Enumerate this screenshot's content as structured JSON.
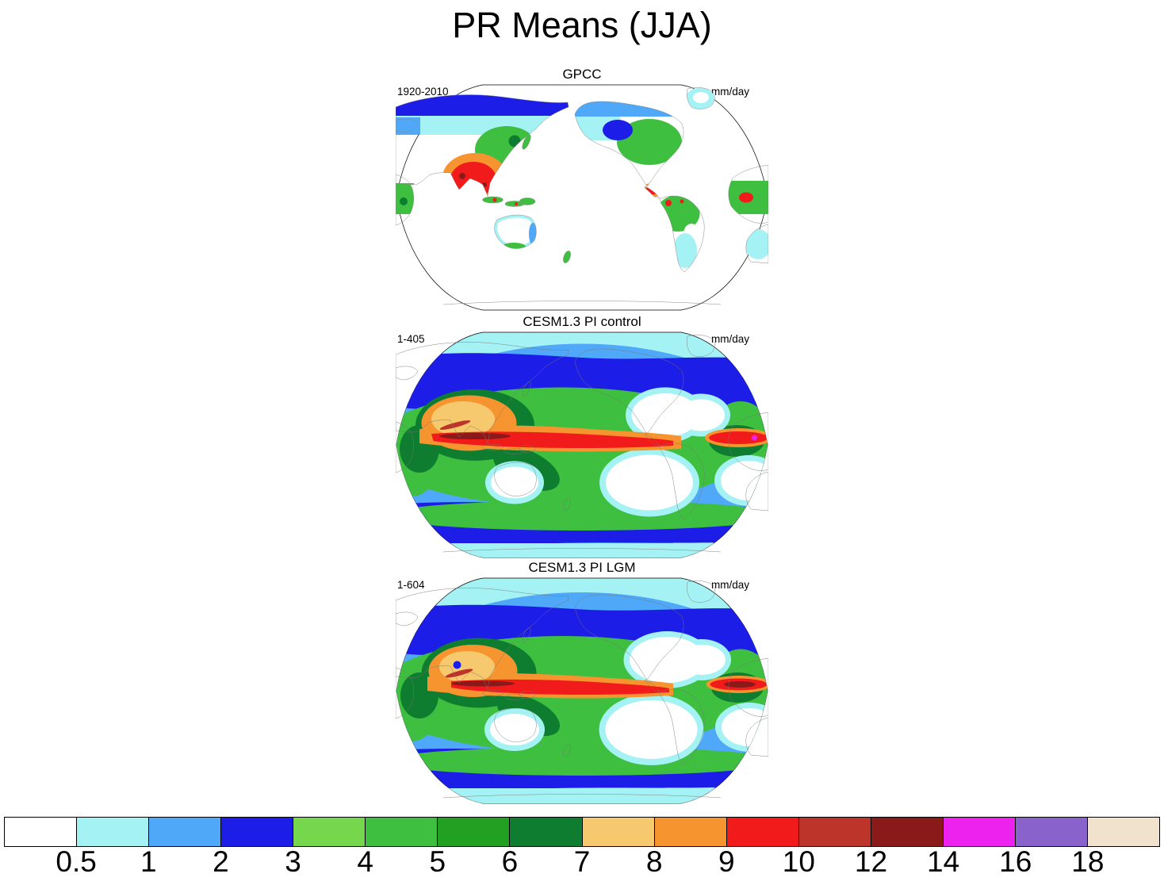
{
  "title": "PR Means (JJA)",
  "panels": [
    {
      "title": "GPCC",
      "period": "1920-2010",
      "units": "mm/day"
    },
    {
      "title": "CESM1.3 PI control",
      "period": "1-405",
      "units": "mm/day"
    },
    {
      "title": "CESM1.3 PI LGM",
      "period": "1-604",
      "units": "mm/day"
    }
  ],
  "colorbar": {
    "labels": [
      "0.5",
      "1",
      "2",
      "3",
      "4",
      "5",
      "6",
      "7",
      "8",
      "9",
      "10",
      "12",
      "14",
      "16",
      "18"
    ],
    "colors": [
      "#FFFFFF",
      "#A5F2F5",
      "#4FA8F8",
      "#1D1DE8",
      "#76D64C",
      "#3FBF3F",
      "#22A022",
      "#0F7D30",
      "#F6C96E",
      "#F6952F",
      "#F21B1B",
      "#BC342A",
      "#8A1A1A",
      "#EE22EE",
      "#8A62CB",
      "#F0E2CC"
    ]
  },
  "chart_data": {
    "type": "heatmap",
    "title": "PR Means (JJA)",
    "units": "mm/day",
    "projection": "global world maps (Robinson-style outline), Pacific-centered",
    "levels": [
      0.5,
      1,
      2,
      3,
      4,
      5,
      6,
      7,
      8,
      9,
      10,
      12,
      14,
      16,
      18
    ],
    "level_colors": [
      "#FFFFFF",
      "#A5F2F5",
      "#4FA8F8",
      "#1D1DE8",
      "#76D64C",
      "#3FBF3F",
      "#22A022",
      "#0F7D30",
      "#F6C96E",
      "#F6952F",
      "#F21B1B",
      "#BC342A",
      "#8A1A1A",
      "#EE22EE",
      "#8A62CB",
      "#F0E2CC"
    ],
    "legend_position": "bottom",
    "panels": [
      {
        "name": "GPCC",
        "period": "1920-2010",
        "field": "JJA mean precipitation, land only; oceans blank; maxima (red, ~9-12 mm/day) over India/Southeast Asia, Central America, northern South America and West Africa"
      },
      {
        "name": "CESM1.3 PI control",
        "period": "1-405",
        "field": "JJA mean precipitation, global; intense ITCZ band (9-14 mm/day) across tropical Pacific and Atlantic, orange west-Pacific warm pool, white subtropical dry zones, blue mid-latitude storm tracks"
      },
      {
        "name": "CESM1.3 PI LGM",
        "period": "1-604",
        "field": "JJA mean precipitation, global; pattern similar to PI control with slightly weaker/shifted ITCZ and drier subtropics"
      }
    ]
  }
}
